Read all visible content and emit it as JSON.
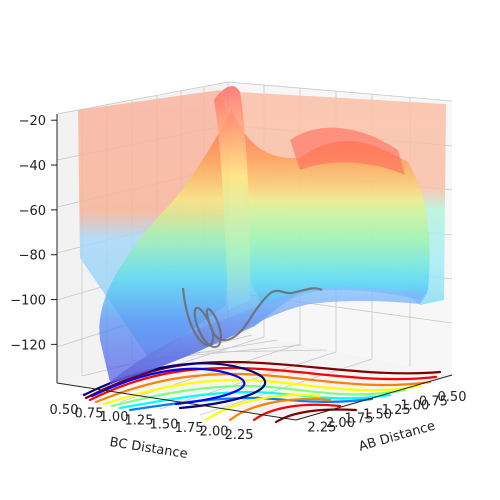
{
  "chart_data": {
    "type": "surface",
    "title": "",
    "xlabel": "AB Distance",
    "ylabel": "BC Distance",
    "zlabel": "",
    "xlim": [
      0.5,
      2.5
    ],
    "ylim": [
      0.5,
      2.5
    ],
    "zlim": [
      -135,
      -15
    ],
    "x_ticks": [
      "0.50",
      "0.75",
      "1.00",
      "1.25",
      "1.50",
      "1.75",
      "2.00",
      "2.25"
    ],
    "y_ticks": [
      "0.50",
      "0.75",
      "1.00",
      "1.25",
      "1.50",
      "1.75",
      "2.00",
      "2.25"
    ],
    "z_ticks": [
      "−120",
      "−100",
      "−80",
      "−60",
      "−40",
      "−20"
    ],
    "colormap": "jet",
    "grid": true,
    "series": [
      {
        "name": "",
        "kind": "potential energy surface, semi-transparent"
      },
      {
        "name": "",
        "kind": "filled contour projection on floor"
      },
      {
        "name": "",
        "kind": "trajectory path"
      }
    ],
    "colors": {
      "pane_back": "#f2f2f2",
      "pane_side": "#f7f7f7",
      "grid": "#c8c8c8",
      "trajectory": "#6b6b6b",
      "colormap_stops": [
        "#00007f",
        "#0000ff",
        "#007fff",
        "#00ffff",
        "#7fff7f",
        "#ffff00",
        "#ff7f00",
        "#ff0000",
        "#7f0000"
      ]
    }
  }
}
